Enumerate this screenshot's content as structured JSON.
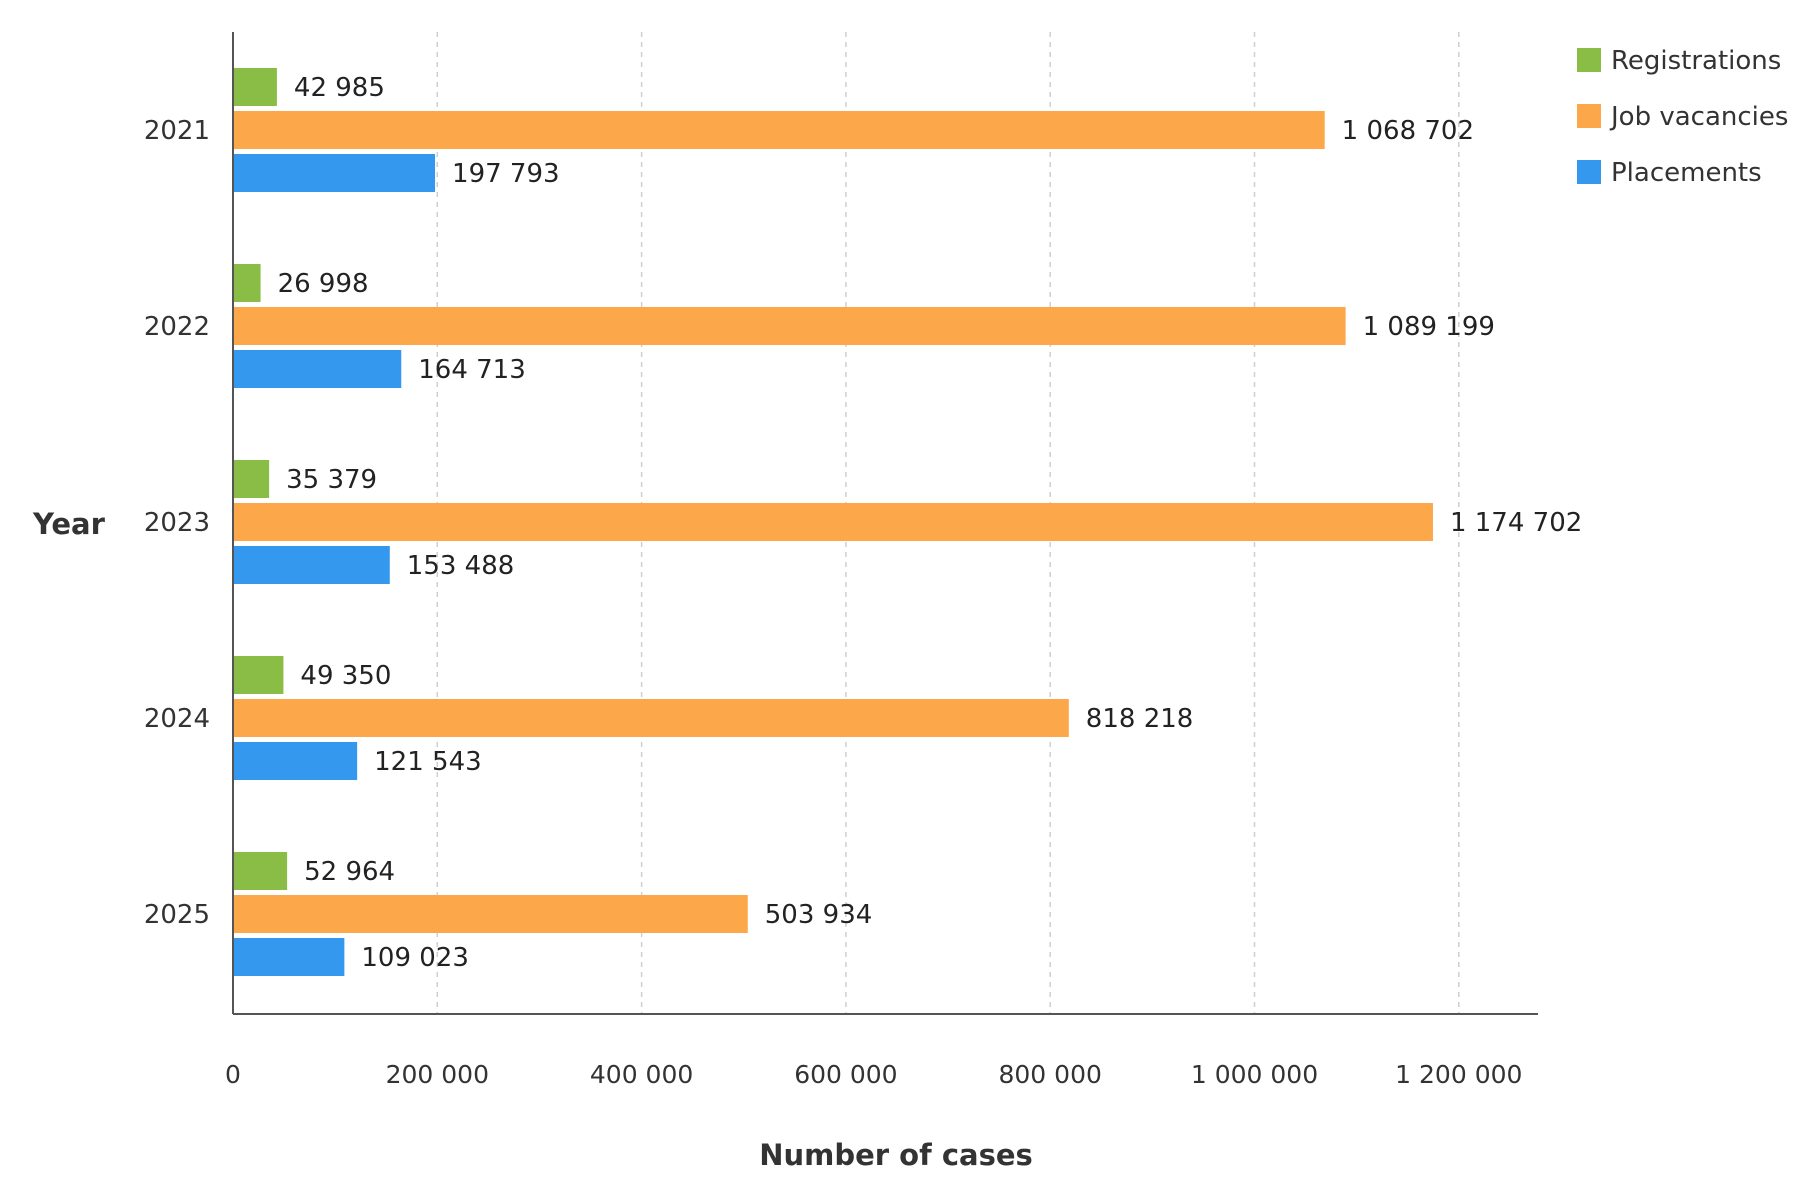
{
  "chart_data": {
    "type": "bar",
    "orientation": "horizontal",
    "categories": [
      "2021",
      "2022",
      "2023",
      "2024",
      "2025"
    ],
    "series": [
      {
        "name": "Registrations",
        "color": "#8abd45",
        "values": [
          42985,
          26998,
          35379,
          49350,
          52964
        ],
        "value_labels": [
          "42 985",
          "26 998",
          "35 379",
          "49 350",
          "52 964"
        ]
      },
      {
        "name": "Job vacancies",
        "color": "#fba74a",
        "values": [
          1068702,
          1089199,
          1174702,
          818218,
          503934
        ],
        "value_labels": [
          "1 068 702",
          "1 089 199",
          "1 174 702",
          "818 218",
          "503 934"
        ]
      },
      {
        "name": "Placements",
        "color": "#3498ef",
        "values": [
          197793,
          164713,
          153488,
          121543,
          109023
        ],
        "value_labels": [
          "197 793",
          "164 713",
          "153 488",
          "121 543",
          "109 023"
        ]
      }
    ],
    "xlabel": "Number of cases",
    "ylabel": "Year",
    "xlim": [
      0,
      1280000
    ],
    "x_ticks": [
      0,
      200000,
      400000,
      600000,
      800000,
      1000000,
      1200000
    ],
    "x_tick_labels": [
      "0",
      "200 000",
      "400 000",
      "600 000",
      "800 000",
      "1 000 000",
      "1 200 000"
    ],
    "grid": "vertical dashed",
    "legend_position": "top-right"
  }
}
